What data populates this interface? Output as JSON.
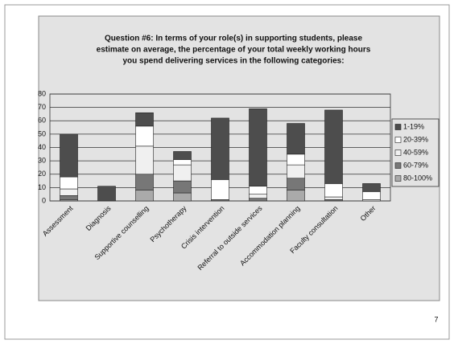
{
  "chart_data": {
    "type": "stacked_bar",
    "title": [
      "Question #6: In terms of your role(s) in supporting students, please",
      "estimate on average, the percentage of your total weekly working hours",
      "you spend delivering services in the following categories:"
    ],
    "categories": [
      "Assessment",
      "Diagnosis",
      "Supportive counselling",
      "Psychotherapy",
      "Crisis intervention",
      "Referral to outside services",
      "Accommodation planning",
      "Faculty consultation",
      "Other"
    ],
    "series": [
      {
        "name": "1-19%",
        "color": "#4d4d4d",
        "values": [
          32,
          11,
          10,
          6,
          46,
          58,
          23,
          55,
          6
        ]
      },
      {
        "name": "20-39%",
        "color": "#ffffff",
        "values": [
          9,
          0,
          15,
          4,
          15,
          6,
          8,
          10,
          6
        ]
      },
      {
        "name": "40-59%",
        "color": "#f0f0f0",
        "values": [
          5,
          0,
          21,
          12,
          0,
          3,
          10,
          2,
          1
        ]
      },
      {
        "name": "60-79%",
        "color": "#777777",
        "values": [
          3,
          0,
          12,
          9,
          1,
          2,
          9,
          1,
          0
        ]
      },
      {
        "name": "80-100%",
        "color": "#aaaaaa",
        "values": [
          1,
          0,
          8,
          6,
          0,
          0,
          8,
          0,
          0
        ]
      }
    ],
    "ylim": [
      0,
      80
    ],
    "yticks": [
      0,
      10,
      20,
      30,
      40,
      50,
      60,
      70,
      80
    ],
    "grid": true,
    "legend": "right",
    "page_number": "7"
  }
}
